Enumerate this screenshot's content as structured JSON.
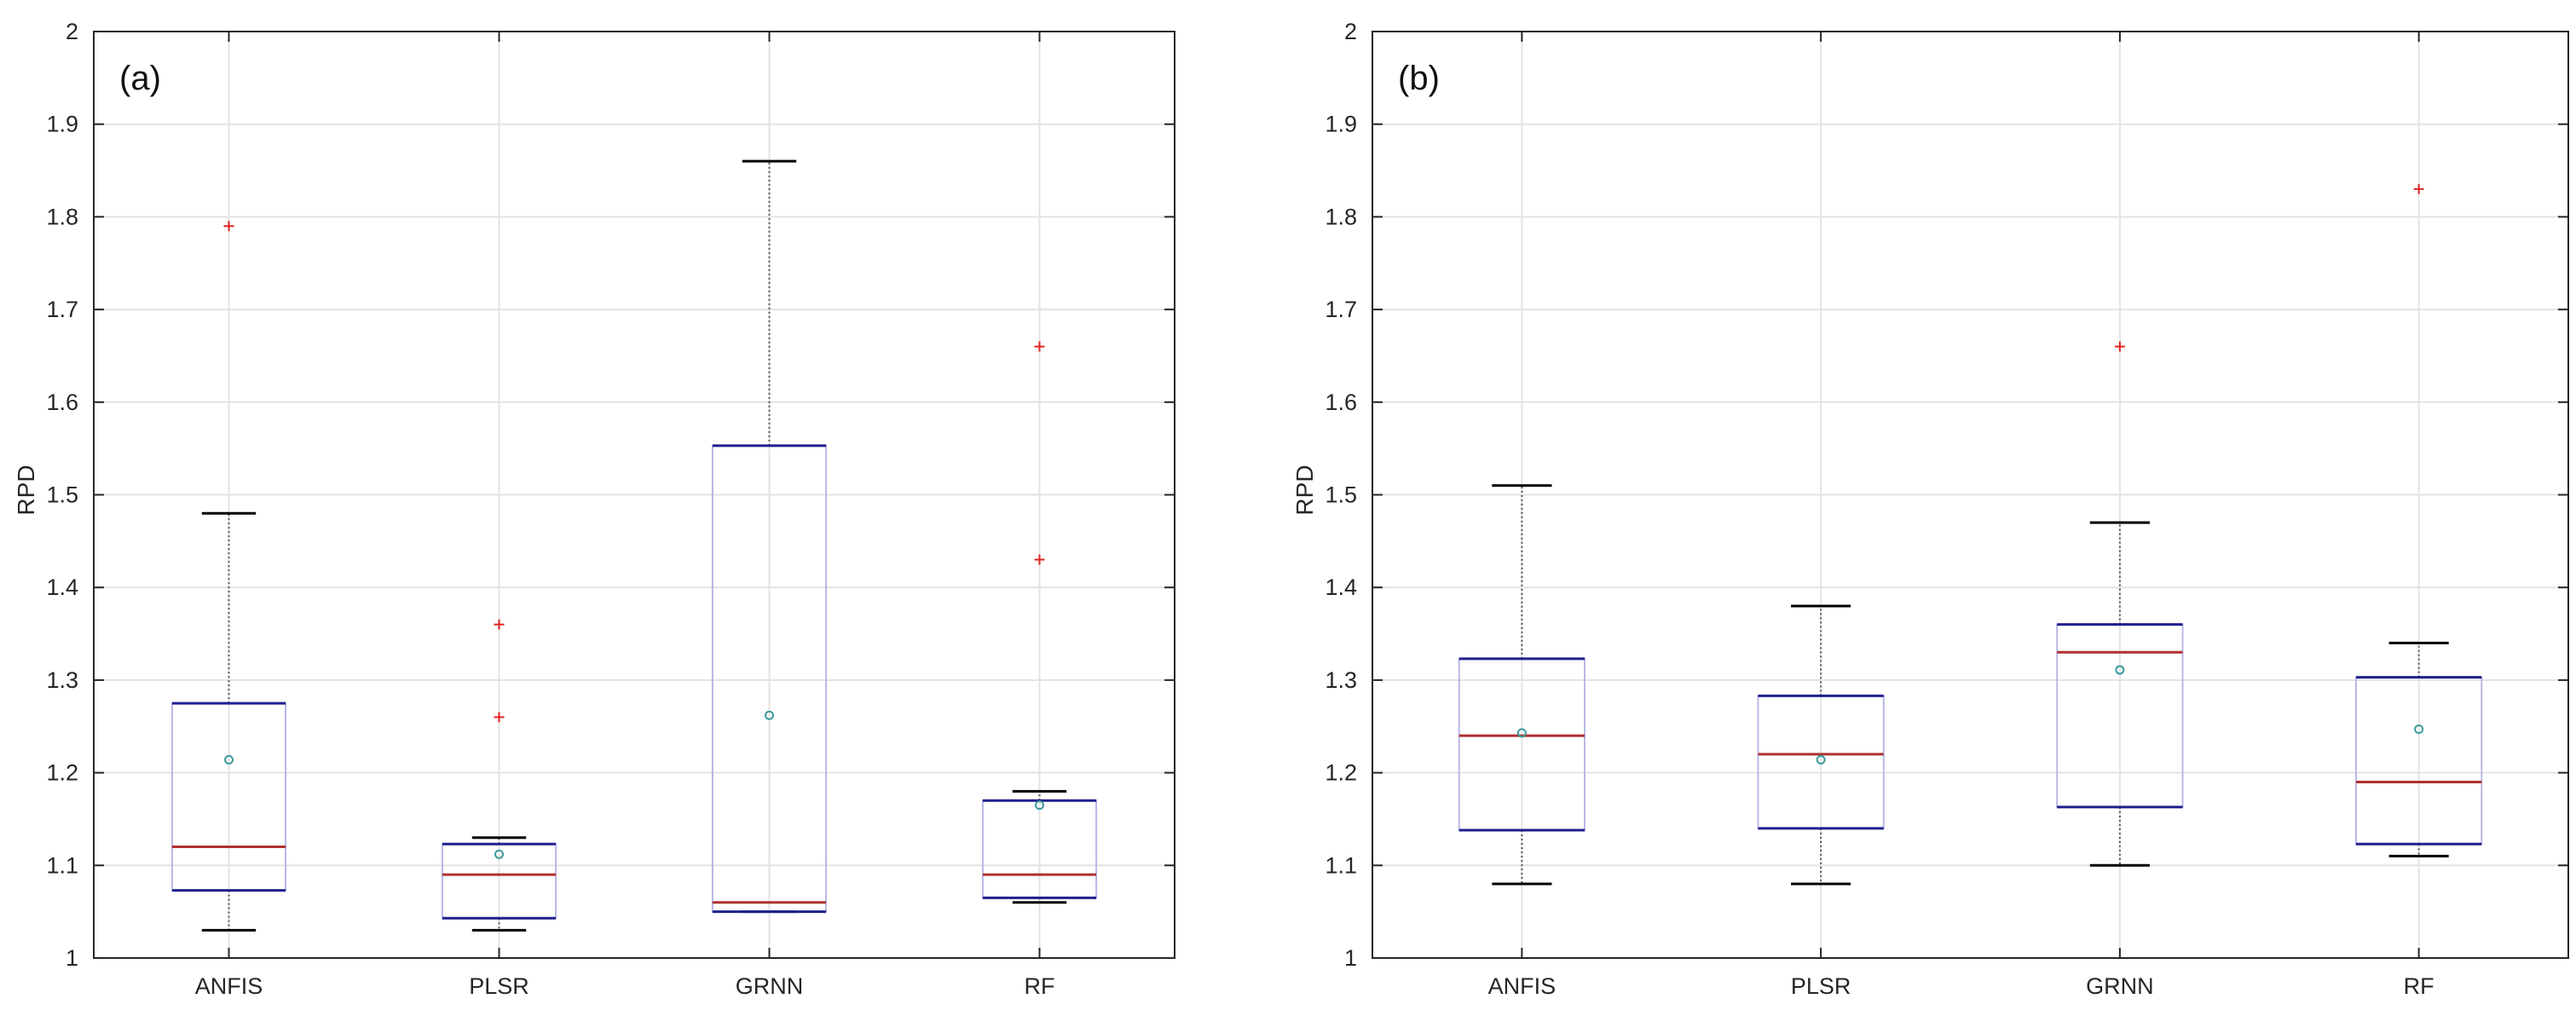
{
  "chart_data": [
    {
      "type": "boxplot",
      "panel": "(a)",
      "ylabel": "RPD",
      "xlabel": "",
      "ylim": [
        1,
        2
      ],
      "yticks": [
        1,
        1.1,
        1.2,
        1.3,
        1.4,
        1.5,
        1.6,
        1.7,
        1.8,
        1.9,
        2
      ],
      "ytick_labels": [
        "1",
        "1.1",
        "1.2",
        "1.3",
        "1.4",
        "1.5",
        "1.6",
        "1.7",
        "1.8",
        "1.9",
        "2"
      ],
      "grid": true,
      "categories": [
        "ANFIS",
        "PLSR",
        "GRNN",
        "RF"
      ],
      "boxes": [
        {
          "name": "ANFIS",
          "whisker_low": 1.03,
          "q1": 1.073,
          "median": 1.12,
          "q3": 1.275,
          "whisker_high": 1.48,
          "mean": 1.214,
          "outliers": [
            1.79
          ]
        },
        {
          "name": "PLSR",
          "whisker_low": 1.03,
          "q1": 1.043,
          "median": 1.09,
          "q3": 1.123,
          "whisker_high": 1.13,
          "mean": 1.112,
          "outliers": [
            1.26,
            1.36
          ]
        },
        {
          "name": "GRNN",
          "whisker_low": 1.05,
          "q1": 1.05,
          "median": 1.06,
          "q3": 1.553,
          "whisker_high": 1.86,
          "mean": 1.262,
          "outliers": []
        },
        {
          "name": "RF",
          "whisker_low": 1.06,
          "q1": 1.065,
          "median": 1.09,
          "q3": 1.17,
          "whisker_high": 1.18,
          "mean": 1.165,
          "outliers": [
            1.43,
            1.66
          ]
        }
      ]
    },
    {
      "type": "boxplot",
      "panel": "(b)",
      "ylabel": "RPD",
      "xlabel": "",
      "ylim": [
        1,
        2
      ],
      "yticks": [
        1,
        1.1,
        1.2,
        1.3,
        1.4,
        1.5,
        1.6,
        1.7,
        1.8,
        1.9,
        2
      ],
      "ytick_labels": [
        "1",
        "1.1",
        "1.2",
        "1.3",
        "1.4",
        "1.5",
        "1.6",
        "1.7",
        "1.8",
        "1.9",
        "2"
      ],
      "grid": true,
      "categories": [
        "ANFIS",
        "PLSR",
        "GRNN",
        "RF"
      ],
      "boxes": [
        {
          "name": "ANFIS",
          "whisker_low": 1.08,
          "q1": 1.138,
          "median": 1.24,
          "q3": 1.323,
          "whisker_high": 1.51,
          "mean": 1.243,
          "outliers": []
        },
        {
          "name": "PLSR",
          "whisker_low": 1.08,
          "q1": 1.14,
          "median": 1.22,
          "q3": 1.283,
          "whisker_high": 1.38,
          "mean": 1.214,
          "outliers": []
        },
        {
          "name": "GRNN",
          "whisker_low": 1.1,
          "q1": 1.163,
          "median": 1.33,
          "q3": 1.36,
          "whisker_high": 1.47,
          "mean": 1.311,
          "outliers": [
            1.66
          ]
        },
        {
          "name": "RF",
          "whisker_low": 1.11,
          "q1": 1.123,
          "median": 1.19,
          "q3": 1.303,
          "whisker_high": 1.34,
          "mean": 1.247,
          "outliers": [
            1.83
          ]
        }
      ]
    }
  ],
  "colors": {
    "box": "#1f1f8f",
    "box_face": "#b8b8e8",
    "median": "#b03030",
    "whisker": "#000000",
    "whisker_line": "#555555",
    "outlier": "#e02020",
    "mean": "#3a9a9a",
    "grid": "#e3e3e3",
    "axis": "#262626"
  }
}
